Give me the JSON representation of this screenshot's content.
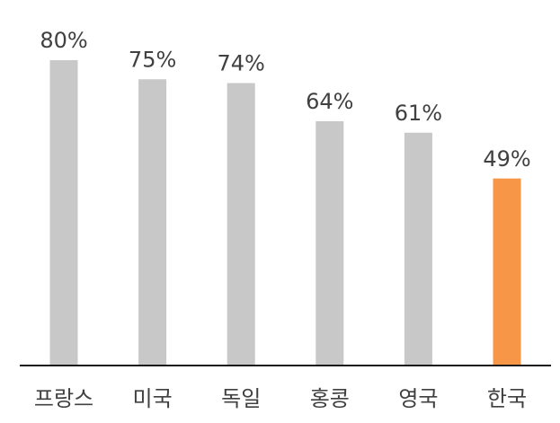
{
  "chart_data": {
    "type": "bar",
    "categories": [
      "프랑스",
      "미국",
      "독일",
      "홍콩",
      "영국",
      "한국"
    ],
    "values": [
      80,
      75,
      74,
      64,
      61,
      49
    ],
    "value_labels": [
      "80%",
      "75%",
      "74%",
      "64%",
      "61%",
      "49%"
    ],
    "ylim": [
      0,
      100
    ],
    "grid": false,
    "legend": "none",
    "colors": {
      "default_bar": "#c8c8c8",
      "highlight_bar": "#f79646",
      "axis": "#1a1a1a",
      "text": "#404040"
    },
    "highlight_category": "한국"
  }
}
